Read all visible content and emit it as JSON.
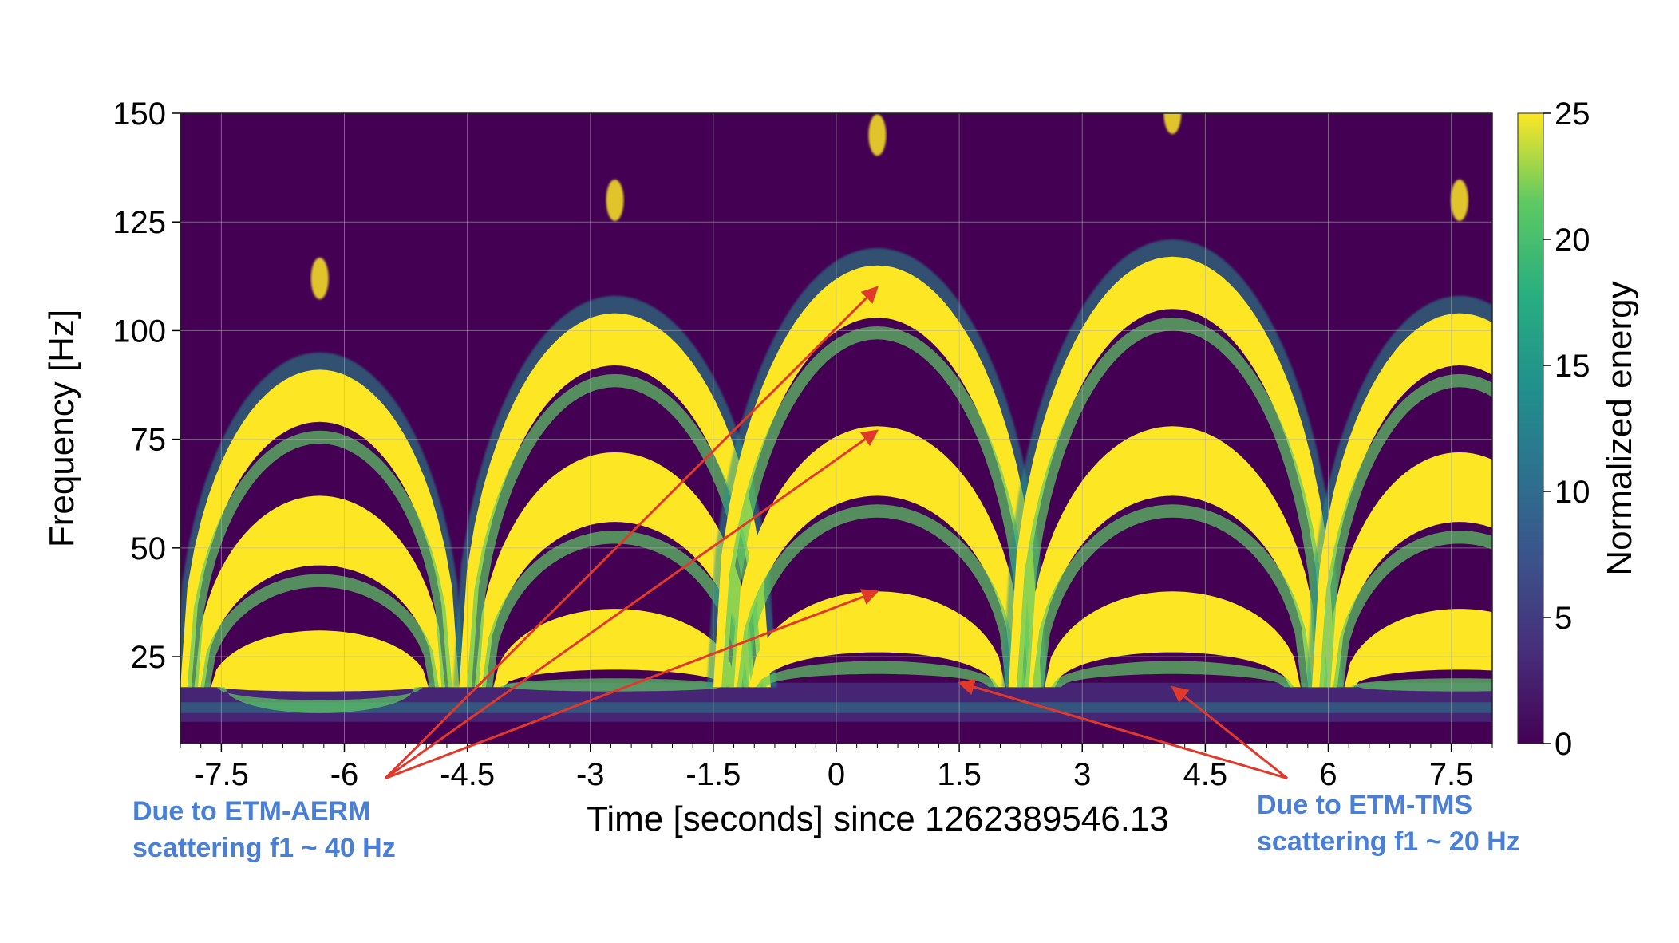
{
  "colors": {
    "background": "#440154",
    "low": "#472c7a",
    "mid": "#21918c",
    "high": "#5ec962",
    "saturated": "#fde725",
    "arrow": "#e0392b",
    "annotation_text": "#4a7fd6"
  },
  "chart_data": {
    "type": "heatmap",
    "colormap": "viridis",
    "title": "",
    "xlabel": "Time [seconds] since 1262389546.13",
    "ylabel": "Frequency [Hz]",
    "xlim": [
      -8,
      8
    ],
    "ylim": [
      5,
      150
    ],
    "grid": true,
    "x_ticks": [
      -7.5,
      -6,
      -4.5,
      -3,
      -1.5,
      0,
      1.5,
      3,
      4.5,
      6,
      7.5
    ],
    "x_tick_labels": [
      "-7.5",
      "-6",
      "-4.5",
      "-3",
      "-1.5",
      "0",
      "1.5",
      "3",
      "4.5",
      "6",
      "7.5"
    ],
    "y_ticks": [
      25,
      50,
      75,
      100,
      125,
      150
    ],
    "y_tick_labels": [
      "25",
      "50",
      "75",
      "100",
      "125",
      "150"
    ],
    "colorbar": {
      "label": "Normalized energy",
      "range": [
        0,
        25
      ],
      "ticks": [
        0,
        5,
        10,
        15,
        20,
        25
      ],
      "tick_labels": [
        "0",
        "5",
        "10",
        "15",
        "20",
        "25"
      ]
    },
    "arches": [
      {
        "center": -6.3,
        "halfwidth": 1.7,
        "harmonic_peaks": [
          31,
          62,
          91
        ],
        "top_blob_freq": 112
      },
      {
        "center": -2.7,
        "halfwidth": 1.9,
        "harmonic_peaks": [
          36,
          72,
          104
        ],
        "top_blob_freq": 130
      },
      {
        "center": 0.5,
        "halfwidth": 2.0,
        "harmonic_peaks": [
          40,
          78,
          115
        ],
        "top_blob_freq": 145
      },
      {
        "center": 4.1,
        "halfwidth": 2.0,
        "harmonic_peaks": [
          40,
          78,
          117
        ],
        "top_blob_freq": 150
      },
      {
        "center": 7.6,
        "halfwidth": 1.8,
        "harmonic_peaks": [
          36,
          72,
          104
        ],
        "top_blob_freq": 130
      }
    ],
    "low_frequency_band": {
      "freq_min": 10,
      "freq_max": 19
    },
    "annotations": [
      {
        "lines": [
          "Due to ETM-AERM",
          "scattering f1 ~ 40 Hz"
        ],
        "arrow_tail": [
          -5.5,
          -3
        ],
        "arrow_targets": [
          [
            0.5,
            40
          ],
          [
            0.5,
            77
          ],
          [
            0.5,
            110
          ]
        ]
      },
      {
        "lines": [
          "Due to ETM-TMS",
          "scattering f1 ~ 20 Hz"
        ],
        "arrow_tail": [
          5.5,
          -3
        ],
        "arrow_targets": [
          [
            1.5,
            19
          ],
          [
            4.1,
            18
          ]
        ]
      }
    ]
  }
}
